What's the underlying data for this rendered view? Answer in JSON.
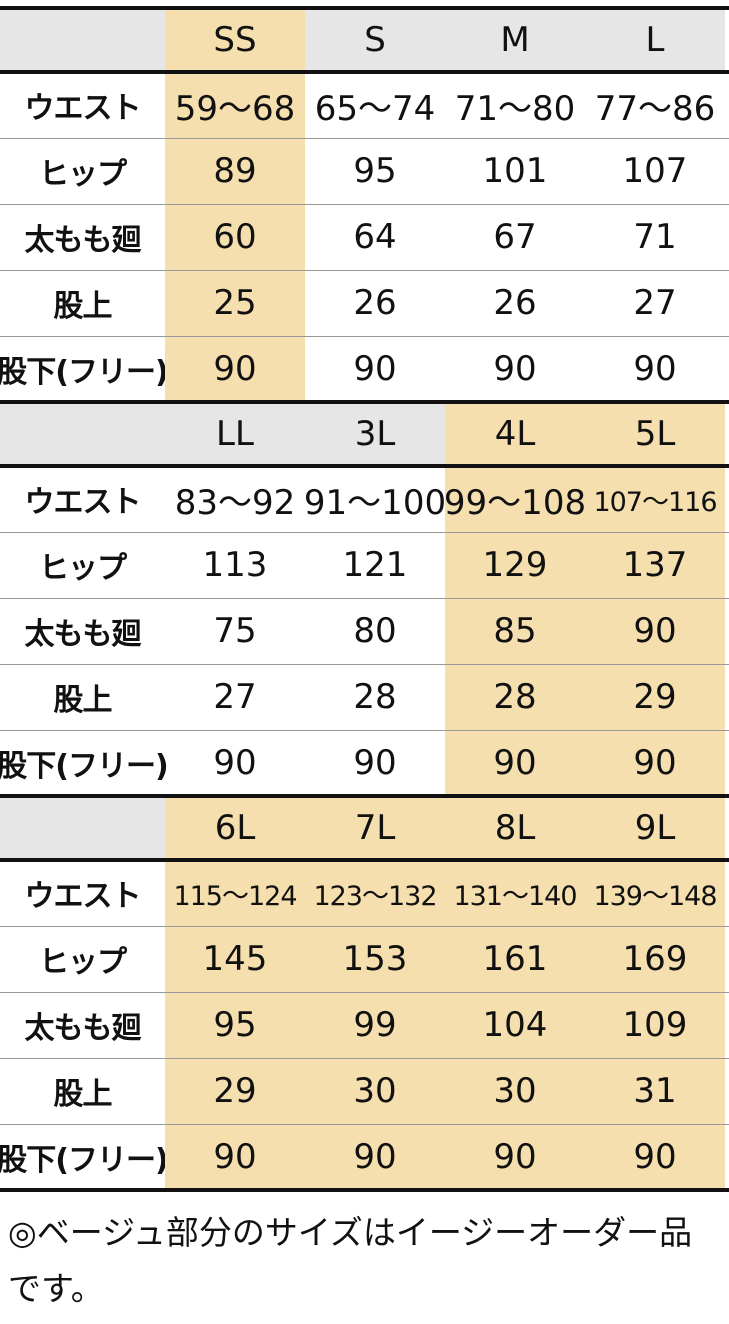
{
  "tables": [
    {
      "sizes": [
        "SS",
        "S",
        "M",
        "L"
      ],
      "highlighted": [
        true,
        false,
        false,
        false
      ],
      "rows": [
        {
          "label": "ウエスト",
          "values": [
            "59〜68",
            "65〜74",
            "71〜80",
            "77〜86"
          ]
        },
        {
          "label": "ヒップ",
          "values": [
            "89",
            "95",
            "101",
            "107"
          ]
        },
        {
          "label": "太もも廻",
          "values": [
            "60",
            "64",
            "67",
            "71"
          ]
        },
        {
          "label": "股上",
          "values": [
            "25",
            "26",
            "26",
            "27"
          ]
        },
        {
          "label": "股下(フリー)",
          "values": [
            "90",
            "90",
            "90",
            "90"
          ]
        }
      ]
    },
    {
      "sizes": [
        "LL",
        "3L",
        "4L",
        "5L"
      ],
      "highlighted": [
        false,
        false,
        true,
        true
      ],
      "rows": [
        {
          "label": "ウエスト",
          "values": [
            "83〜92",
            "91〜100",
            "99〜108",
            "107〜116"
          ]
        },
        {
          "label": "ヒップ",
          "values": [
            "113",
            "121",
            "129",
            "137"
          ]
        },
        {
          "label": "太もも廻",
          "values": [
            "75",
            "80",
            "85",
            "90"
          ]
        },
        {
          "label": "股上",
          "values": [
            "27",
            "28",
            "28",
            "29"
          ]
        },
        {
          "label": "股下(フリー)",
          "values": [
            "90",
            "90",
            "90",
            "90"
          ]
        }
      ]
    },
    {
      "sizes": [
        "6L",
        "7L",
        "8L",
        "9L"
      ],
      "highlighted": [
        true,
        true,
        true,
        true
      ],
      "rows": [
        {
          "label": "ウエスト",
          "values": [
            "115〜124",
            "123〜132",
            "131〜140",
            "139〜148"
          ]
        },
        {
          "label": "ヒップ",
          "values": [
            "145",
            "153",
            "161",
            "169"
          ]
        },
        {
          "label": "太もも廻",
          "values": [
            "95",
            "99",
            "104",
            "109"
          ]
        },
        {
          "label": "股上",
          "values": [
            "29",
            "30",
            "30",
            "31"
          ]
        },
        {
          "label": "股下(フリー)",
          "values": [
            "90",
            "90",
            "90",
            "90"
          ]
        }
      ]
    }
  ],
  "note": "◎ベージュ部分のサイズはイージーオーダー品です。"
}
